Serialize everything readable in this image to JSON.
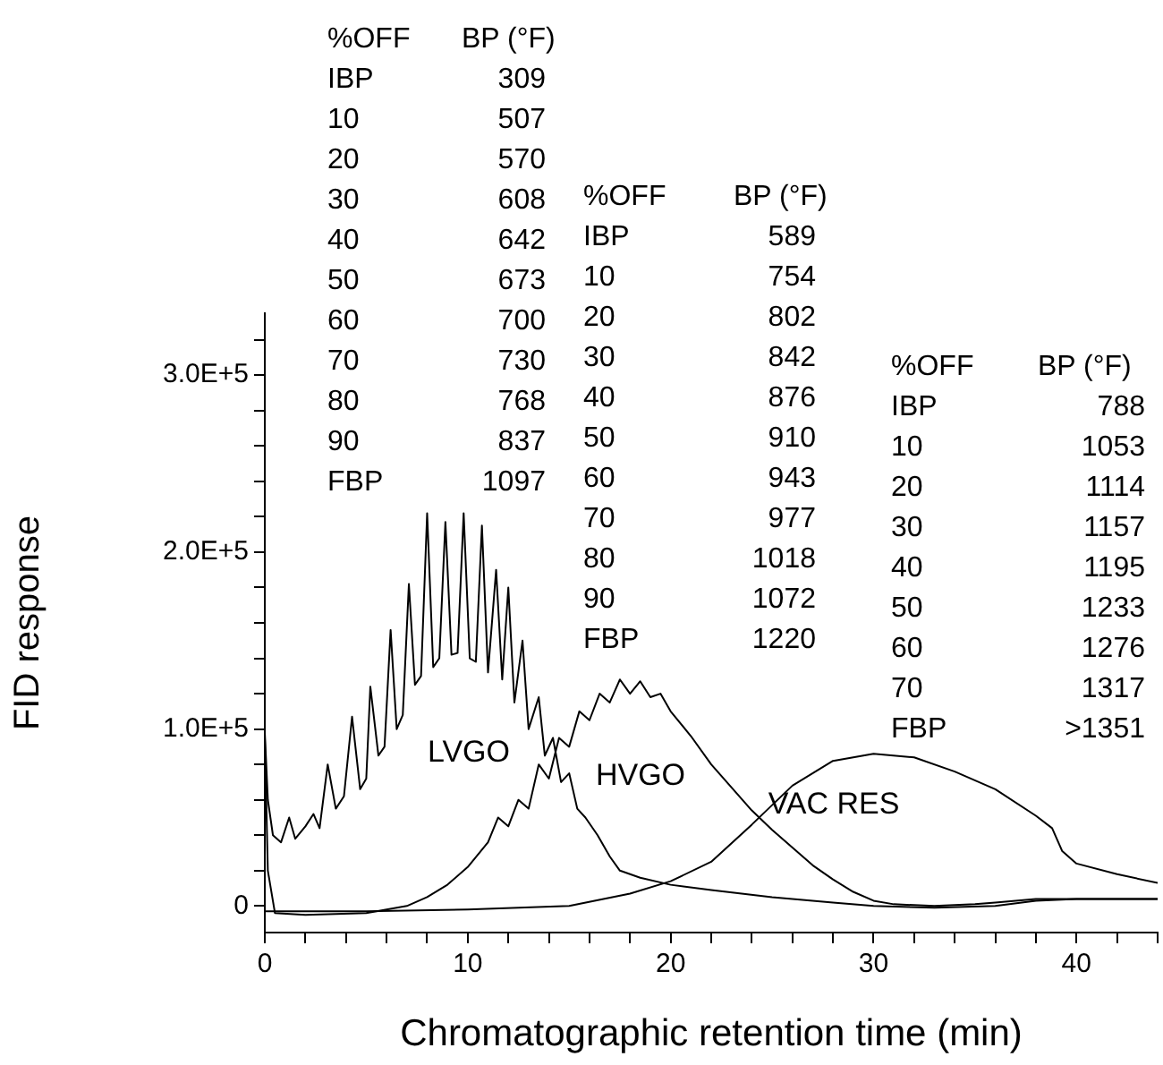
{
  "chart_data": {
    "type": "line",
    "xlabel": "Chromatographic retention time (min)",
    "ylabel": "FID response",
    "xlim": [
      0,
      44
    ],
    "xticks": [
      0,
      {
        "value": 2,
        "label": null
      },
      {
        "value": 4,
        "label": null
      },
      {
        "value": 6,
        "label": null
      },
      {
        "value": 8,
        "label": null
      },
      10,
      {
        "value": 12,
        "label": null
      },
      {
        "value": 14,
        "label": null
      },
      {
        "value": 16,
        "label": null
      },
      {
        "value": 18,
        "label": null
      },
      20,
      {
        "value": 22,
        "label": null
      },
      {
        "value": 24,
        "label": null
      },
      {
        "value": 26,
        "label": null
      },
      {
        "value": 28,
        "label": null
      },
      30,
      {
        "value": 32,
        "label": null
      },
      {
        "value": 34,
        "label": null
      },
      {
        "value": 36,
        "label": null
      },
      {
        "value": 38,
        "label": null
      },
      40,
      {
        "value": 42,
        "label": null
      },
      {
        "value": 44,
        "label": null
      }
    ],
    "ylim": [
      -15000,
      335000
    ],
    "yticks": [
      0,
      {
        "value": 20000,
        "label": null
      },
      {
        "value": 40000,
        "label": null
      },
      {
        "value": 60000,
        "label": null
      },
      {
        "value": 80000,
        "label": null
      },
      {
        "value": 100000,
        "label": "1.0E+5"
      },
      {
        "value": 120000,
        "label": null
      },
      {
        "value": 140000,
        "label": null
      },
      {
        "value": 160000,
        "label": null
      },
      {
        "value": 180000,
        "label": null
      },
      {
        "value": 200000,
        "label": "2.0E+5"
      },
      {
        "value": 220000,
        "label": null
      },
      {
        "value": 240000,
        "label": null
      },
      {
        "value": 260000,
        "label": null
      },
      {
        "value": 280000,
        "label": null
      },
      {
        "value": 300000,
        "label": "3.0E+5"
      },
      {
        "value": 320000,
        "label": null
      }
    ],
    "grid": false,
    "legend": false,
    "marker": "none",
    "line_style": "solid",
    "series": [
      {
        "name": "LVGO",
        "color": "#000000",
        "x": [
          0,
          0.15,
          0.4,
          0.8,
          1.2,
          1.5,
          2,
          2.4,
          2.7,
          3.1,
          3.5,
          3.9,
          4.3,
          4.7,
          5.0,
          5.2,
          5.6,
          5.9,
          6.2,
          6.5,
          6.8,
          7.1,
          7.4,
          7.7,
          8.0,
          8.3,
          8.6,
          8.9,
          9.2,
          9.5,
          9.8,
          10.1,
          10.4,
          10.7,
          11.0,
          11.4,
          11.7,
          12.0,
          12.3,
          12.7,
          13.0,
          13.5,
          13.8,
          14.2,
          14.6,
          15.0,
          15.4,
          15.8,
          16.4,
          17,
          17.5,
          18.5,
          20,
          22,
          25,
          28,
          30,
          33,
          36,
          38,
          40,
          44
        ],
        "values": [
          98000,
          60000,
          40000,
          36000,
          50000,
          38000,
          45000,
          52000,
          44000,
          80000,
          55000,
          62000,
          107000,
          66000,
          72000,
          124000,
          85000,
          90000,
          156000,
          100000,
          108000,
          182000,
          125000,
          130000,
          222000,
          135000,
          140000,
          217000,
          142000,
          143000,
          222000,
          140000,
          138000,
          215000,
          132000,
          190000,
          128000,
          180000,
          115000,
          150000,
          100000,
          118000,
          85000,
          95000,
          70000,
          75000,
          55000,
          50000,
          40000,
          28000,
          20000,
          16000,
          12000,
          9000,
          5000,
          2000,
          0,
          -1000,
          0,
          3000,
          4000,
          4000
        ]
      },
      {
        "name": "HVGO",
        "color": "#000000",
        "x": [
          0,
          0.15,
          0.5,
          2,
          5,
          7,
          8,
          9,
          10,
          11,
          11.5,
          12,
          12.5,
          13,
          13.5,
          14,
          14.5,
          15,
          15.5,
          16,
          16.5,
          17,
          17.5,
          18,
          18.5,
          19,
          19.5,
          20,
          21,
          22,
          23,
          24,
          25,
          26,
          27,
          28,
          29,
          30,
          31,
          33,
          35,
          36,
          38,
          40,
          44
        ],
        "values": [
          95000,
          20000,
          -4000,
          -5000,
          -4000,
          0,
          5000,
          12000,
          22000,
          36000,
          50000,
          45000,
          60000,
          55000,
          80000,
          72000,
          95000,
          90000,
          110000,
          105000,
          120000,
          115000,
          128000,
          120000,
          127000,
          118000,
          120000,
          110000,
          96000,
          80000,
          67000,
          54000,
          43000,
          33000,
          23000,
          15000,
          8000,
          3000,
          1000,
          0,
          1000,
          2000,
          4000,
          4000,
          4000
        ]
      },
      {
        "name": "VAC RES",
        "color": "#000000",
        "x": [
          0,
          5,
          10,
          15,
          18,
          20,
          22,
          24,
          26,
          28,
          30,
          32,
          34,
          36,
          38,
          38.8,
          39.3,
          40,
          42,
          44
        ],
        "values": [
          -3000,
          -3000,
          -2000,
          0,
          7000,
          14000,
          25000,
          46000,
          68000,
          82000,
          86000,
          84000,
          76000,
          66000,
          51000,
          44000,
          31000,
          24000,
          18000,
          13000
        ]
      }
    ],
    "annotations": [
      "%OFF\tBP (°F)\nIBP\t309\n10\t507\n20\t570\n30\t608\n40\t642\n50\t673\n60\t700\n70\t730\n80\t768\n90\t837\nFBP\t1097",
      "%OFF\tBP (°F)\nIBP\t589\n10\t754\n20\t802\n30\t842\n40\t876\n50\t910\n60\t943\n70\t977\n80\t1018\n90\t1072\nFBP\t1220",
      "%OFF\tBP (°F)\nIBP\t788\n10\t1053\n20\t1114\n30\t1157\n40\t1195\n50\t1233\n60\t1276\n70\t1317\nFBP\t>1351"
    ]
  }
}
